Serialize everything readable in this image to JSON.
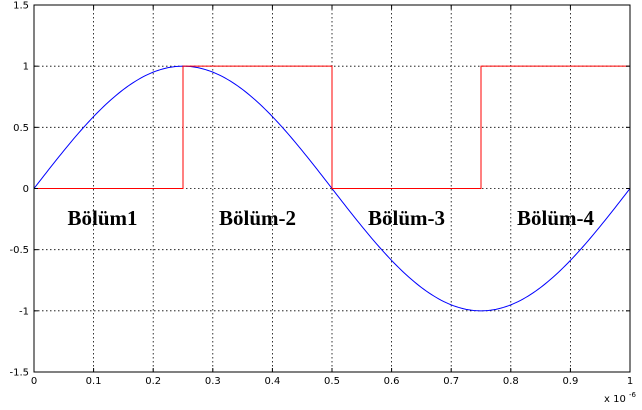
{
  "chart_data": {
    "type": "line",
    "title": "",
    "xlabel": "",
    "ylabel": "",
    "xlim": [
      0,
      1
    ],
    "ylim": [
      -1.5,
      1.5
    ],
    "x_exponent_label": {
      "prefix": "x 10",
      "exponent": "-6"
    },
    "grid": true,
    "x_ticks": [
      0,
      0.1,
      0.2,
      0.3,
      0.4,
      0.5,
      0.6,
      0.7,
      0.8,
      0.9,
      1
    ],
    "x_tick_labels": [
      "0",
      "0.1",
      "0.2",
      "0.3",
      "0.4",
      "0.5",
      "0.6",
      "0.7",
      "0.8",
      "0.9",
      "1"
    ],
    "y_ticks": [
      -1.5,
      -1,
      -0.5,
      0,
      0.5,
      1,
      1.5
    ],
    "y_tick_labels": [
      "-1.5",
      "-1",
      "-0.5",
      "0",
      "0.5",
      "1",
      "1.5"
    ],
    "series": [
      {
        "kind": "sine",
        "color": "#0000ff",
        "amplitude": 1,
        "period": 1,
        "x_range": [
          0,
          1
        ]
      },
      {
        "kind": "step",
        "color": "#ff0000",
        "x": [
          0,
          0.25,
          0.25,
          0.5,
          0.5,
          0.75,
          0.75,
          1
        ],
        "y": [
          0,
          0,
          1,
          1,
          0,
          0,
          1,
          1
        ]
      }
    ],
    "annotations": [
      {
        "text": "Bölüm1",
        "x": 0.115,
        "y": -0.24
      },
      {
        "text": "Bölüm-2",
        "x": 0.375,
        "y": -0.24
      },
      {
        "text": "Bölüm-3",
        "x": 0.625,
        "y": -0.24
      },
      {
        "text": "Bölüm-4",
        "x": 0.875,
        "y": -0.24
      }
    ]
  }
}
